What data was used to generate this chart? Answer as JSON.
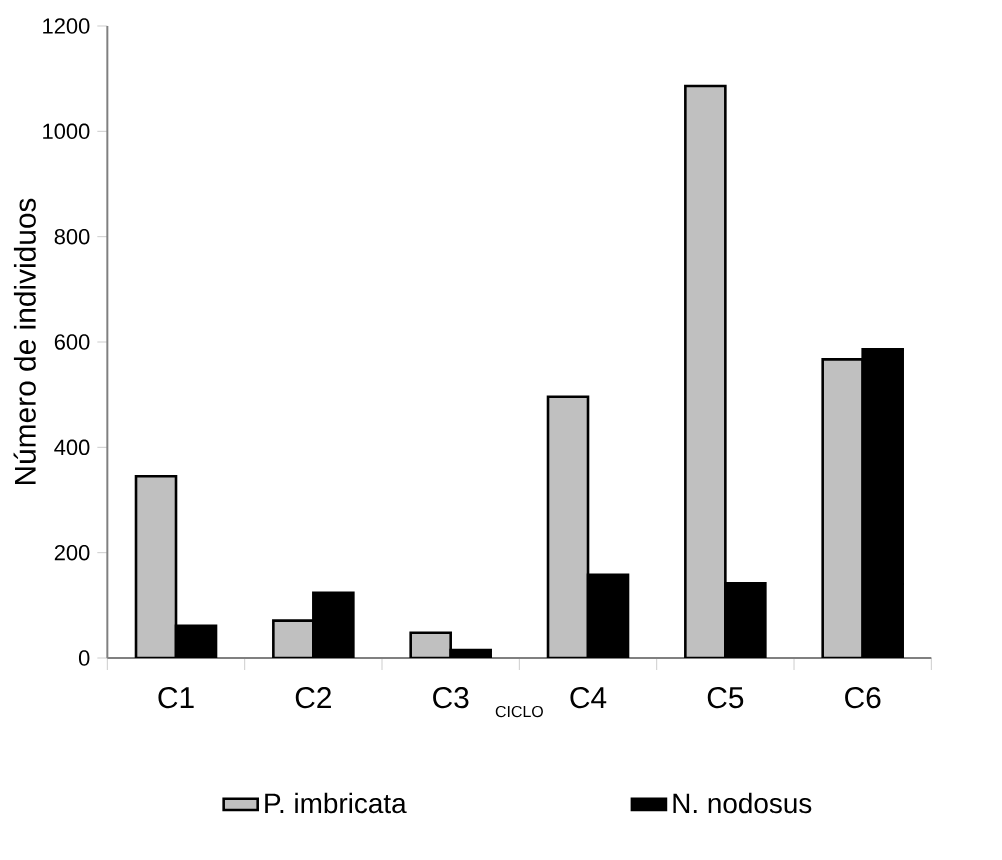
{
  "chart_data": {
    "type": "bar",
    "xlabel": "CICLO",
    "ylabel": "Número de individuos",
    "categories": [
      "C1",
      "C2",
      "C3",
      "C4",
      "C5",
      "C6"
    ],
    "series": [
      {
        "name": "P. imbricata",
        "color": "#c0c0c0",
        "values": [
          345,
          71,
          48,
          496,
          1086,
          567
        ]
      },
      {
        "name": "N. nodosus",
        "color": "#000000",
        "values": [
          61,
          124,
          15,
          158,
          142,
          586
        ]
      }
    ],
    "ylim": [
      0,
      1200
    ],
    "yticks": [
      0,
      200,
      400,
      600,
      800,
      1000,
      1200
    ],
    "grid": false,
    "legend": "bottom"
  }
}
